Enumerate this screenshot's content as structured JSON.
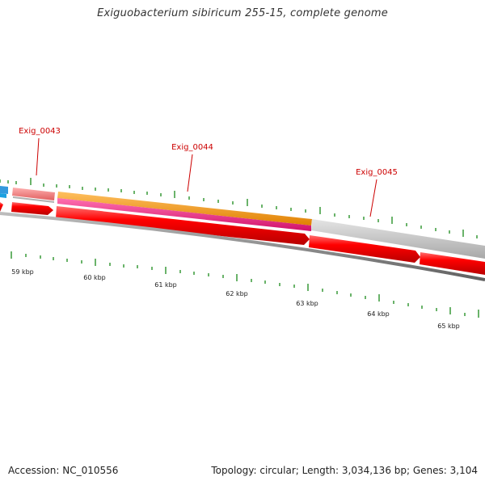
{
  "title": "Exiguobacterium sibiricum 255-15, complete genome",
  "footer": {
    "accession": "Accession: NC_010556",
    "summary": "Topology: circular; Length: 3,034,136 bp; Genes: 3,104"
  },
  "colors": {
    "cds": "#ff0000",
    "gene_label": "#cc0000",
    "tick": "#1a8a1a",
    "backbone": "#808080",
    "track_grey": "#c0c0c0",
    "track_pink": "#f08080",
    "track_orange": "#ff9900",
    "track_magenta": "#ff2a8a",
    "track_blue": "#2299dd"
  },
  "gene_labels": [
    {
      "id": "Exig_0043",
      "text": "Exig_0043"
    },
    {
      "id": "Exig_0044",
      "text": "Exig_0044"
    },
    {
      "id": "Exig_0045",
      "text": "Exig_0045"
    }
  ],
  "kbp_labels": [
    "59 kbp",
    "60 kbp",
    "61 kbp",
    "62 kbp",
    "63 kbp",
    "64 kbp",
    "65 kbp"
  ]
}
